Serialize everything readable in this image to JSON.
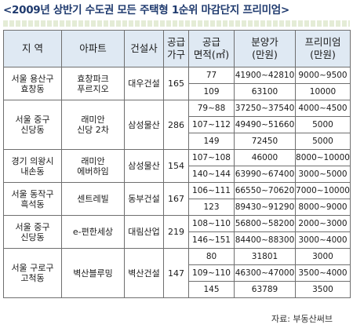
{
  "title": "<2009년 상반기 수도권 모든 주택형 1순위 마감단지 프리미엄>",
  "headers": [
    "지 역",
    "아파트",
    "건설사",
    "공급\n가구",
    "공급\n면적(㎡)",
    "분양가\n(만원)",
    "프리미엄\n(만원)"
  ],
  "complexes": [
    {
      "region": "서울 용산구\n효창동",
      "apartment": "효창파크\n푸르지오",
      "builder": "대우건설",
      "units": "165",
      "rows": [
        {
          "area": "77",
          "price": "41900~42810",
          "premium": "9000~9500"
        },
        {
          "area": "109",
          "price": "63100",
          "premium": "10000"
        }
      ]
    },
    {
      "region": "서울 중구\n신당동",
      "apartment": "래미안\n신당 2차",
      "builder": "삼성물산",
      "units": "286",
      "rows": [
        {
          "area": "79~88",
          "price": "37250~37540",
          "premium": "4000~4500"
        },
        {
          "area": "107~112",
          "price": "49490~51660",
          "premium": "5000"
        },
        {
          "area": "149",
          "price": "72450",
          "premium": "5000"
        }
      ]
    },
    {
      "region": "경기 의왕시\n내손동",
      "apartment": "래미안\n에버하임",
      "builder": "삼성물산",
      "units": "154",
      "rows": [
        {
          "area": "107~108",
          "price": "46000",
          "premium": "8000~10000"
        },
        {
          "area": "140~144",
          "price": "63990~67400",
          "premium": "3000~5000"
        }
      ]
    },
    {
      "region": "서울 동작구\n흑석동",
      "apartment": "센트레빌",
      "builder": "동부건설",
      "units": "167",
      "rows": [
        {
          "area": "106~111",
          "price": "66550~70620",
          "premium": "7000~10000"
        },
        {
          "area": "123",
          "price": "89430~91290",
          "premium": "8000~9000"
        }
      ]
    },
    {
      "region": "서울 중구\n신당동",
      "apartment": "e-편한세상",
      "builder": "대림산업",
      "units": "219",
      "rows": [
        {
          "area": "108~110",
          "price": "56800~58200",
          "premium": "2000~3000"
        },
        {
          "area": "146~151",
          "price": "84400~88300",
          "premium": "3000~4000"
        }
      ]
    },
    {
      "region": "서울 구로구\n고척동",
      "apartment": "벽산블루밍",
      "builder": "벽산건설",
      "units": "147",
      "rows": [
        {
          "area": "80",
          "price": "31801",
          "premium": "3000"
        },
        {
          "area": "109~110",
          "price": "46300~47000",
          "premium": "3500~4000"
        },
        {
          "area": "145",
          "price": "63789",
          "premium": "3500"
        }
      ]
    }
  ],
  "source": "자료: 부동산써브"
}
